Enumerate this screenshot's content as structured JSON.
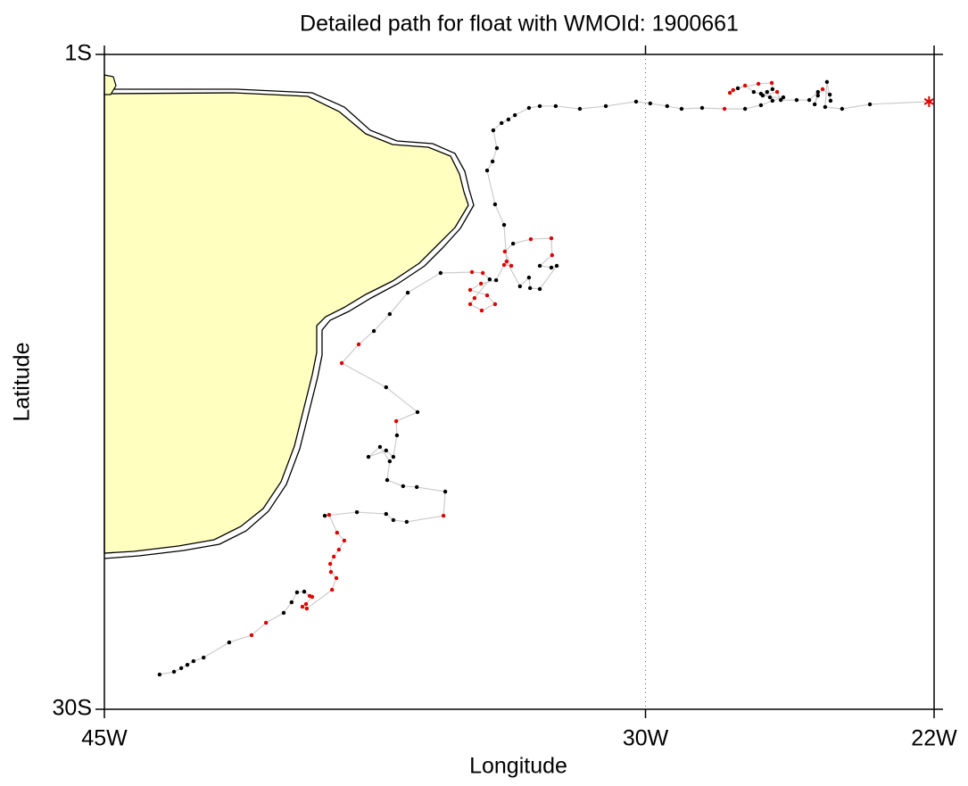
{
  "chart_data": {
    "type": "line",
    "title": "Detailed path for float with WMOId: 1900661",
    "xlabel": "Longitude",
    "ylabel": "Latitude",
    "xlim": [
      -45,
      -22
    ],
    "ylim": [
      -30,
      -1
    ],
    "xticks": [
      {
        "value": -45,
        "label": "45W"
      },
      {
        "value": -30,
        "label": "30W"
      },
      {
        "value": -22,
        "label": "22W"
      }
    ],
    "yticks": [
      {
        "value": -1,
        "label": "1S"
      },
      {
        "value": -30,
        "label": "30S"
      }
    ],
    "vlines": [
      -30
    ],
    "line_color": "#cccccc",
    "land_color": "#ffffc0",
    "last_marker": "asterisk",
    "x": [
      -43.47,
      -43.07,
      -42.87,
      -42.7,
      -42.53,
      -42.25,
      -41.54,
      -40.92,
      -40.52,
      -40.03,
      -39.81,
      -39.66,
      -39.46,
      -39.31,
      -39.24,
      -39.41,
      -39.51,
      -39.39,
      -38.69,
      -38.57,
      -38.72,
      -38.74,
      -38.64,
      -38.5,
      -38.35,
      -38.55,
      -38.77,
      -38.89,
      -38.0,
      -37.19,
      -36.99,
      -36.62,
      -35.6,
      -35.55,
      -36.34,
      -36.72,
      -37.16,
      -37.09,
      -37.36,
      -37.68,
      -37.19,
      -36.99,
      -36.89,
      -36.91,
      -36.32,
      -37.19,
      -38.42,
      -37.95,
      -37.53,
      -37.09,
      -36.59,
      -35.68,
      -34.81,
      -34.51,
      -34.32,
      -34.74,
      -34.86,
      -34.54,
      -34.17,
      -34.39,
      -34.86,
      -34.56,
      -34.14,
      -33.92,
      -33.72,
      -33.9,
      -33.67,
      -33.18,
      -32.61,
      -32.59,
      -32.93,
      -32.61,
      -32.46,
      -32.93,
      -33.2,
      -33.23,
      -33.48,
      -33.85,
      -33.92,
      -34.17,
      -34.39,
      -34.24,
      -34.12,
      -34.22,
      -33.99,
      -33.8,
      -33.62,
      -33.23,
      -32.93,
      -32.49,
      -31.82,
      -31.1,
      -30.26,
      -29.87,
      -29.4,
      -29.0,
      -28.43,
      -27.81,
      -27.24,
      -26.8,
      -26.48,
      -26.18,
      -26.55,
      -26.8,
      -27.0,
      -27.24,
      -27.57,
      -27.66,
      -27.44,
      -26.87,
      -26.5,
      -26.48,
      -26.63,
      -26.75,
      -26.35,
      -26.25,
      -25.81,
      -25.46,
      -25.22,
      -25.31,
      -25.22,
      -25.09,
      -24.89,
      -24.87,
      -24.97,
      -25.02,
      -24.55,
      -23.78,
      -22.14
    ],
    "y": [
      -28.46,
      -28.34,
      -28.18,
      -28.03,
      -27.87,
      -27.71,
      -27.04,
      -26.72,
      -26.17,
      -25.73,
      -25.26,
      -24.82,
      -24.79,
      -24.98,
      -25.02,
      -25.34,
      -25.46,
      -25.54,
      -24.71,
      -24.19,
      -23.92,
      -23.56,
      -23.24,
      -22.93,
      -22.53,
      -22.18,
      -21.39,
      -21.43,
      -21.27,
      -21.35,
      -21.62,
      -21.7,
      -21.43,
      -20.36,
      -20.16,
      -20.12,
      -19.85,
      -19.02,
      -18.38,
      -18.82,
      -18.54,
      -18.82,
      -17.87,
      -17.24,
      -16.84,
      -15.74,
      -14.67,
      -13.84,
      -13.25,
      -12.5,
      -11.55,
      -10.68,
      -10.64,
      -10.68,
      -10.96,
      -11.79,
      -12.06,
      -12.34,
      -12.06,
      -11.67,
      -11.43,
      -11.15,
      -11.0,
      -10.32,
      -10.36,
      -9.73,
      -9.38,
      -9.18,
      -9.14,
      -9.89,
      -10.36,
      -10.44,
      -10.36,
      -11.39,
      -11.35,
      -10.88,
      -11.27,
      -10.17,
      -8.55,
      -7.64,
      -6.14,
      -5.74,
      -5.15,
      -4.36,
      -4.04,
      -3.88,
      -3.69,
      -3.37,
      -3.29,
      -3.29,
      -3.41,
      -3.29,
      -3.09,
      -3.17,
      -3.29,
      -3.41,
      -3.37,
      -3.41,
      -3.41,
      -3.25,
      -3.05,
      -2.9,
      -2.9,
      -2.74,
      -2.66,
      -2.38,
      -2.58,
      -2.7,
      -2.5,
      -2.3,
      -2.26,
      -2.54,
      -2.66,
      -2.82,
      -2.66,
      -3.02,
      -3.02,
      -3.02,
      -2.66,
      -3.21,
      -2.82,
      -2.54,
      -2.78,
      -3.05,
      -2.22,
      -3.33,
      -3.41,
      -3.21,
      -3.09
    ],
    "point_colors": [
      "#000000",
      "#000000",
      "#000000",
      "#000000",
      "#000000",
      "#000000",
      "#000000",
      "#e00000",
      "#e00000",
      "#000000",
      "#000000",
      "#000000",
      "#000000",
      "#e00000",
      "#e00000",
      "#e00000",
      "#e00000",
      "#e00000",
      "#e00000",
      "#e00000",
      "#e00000",
      "#e00000",
      "#e00000",
      "#e00000",
      "#e00000",
      "#e00000",
      "#e00000",
      "#000000",
      "#000000",
      "#000000",
      "#000000",
      "#000000",
      "#e00000",
      "#000000",
      "#000000",
      "#000000",
      "#000000",
      "#000000",
      "#000000",
      "#000000",
      "#000000",
      "#000000",
      "#000000",
      "#e00000",
      "#000000",
      "#000000",
      "#e00000",
      "#e00000",
      "#000000",
      "#000000",
      "#000000",
      "#000000",
      "#e00000",
      "#e00000",
      "#000000",
      "#e00000",
      "#e00000",
      "#e00000",
      "#e00000",
      "#e00000",
      "#e00000",
      "#e00000",
      "#000000",
      "#e00000",
      "#e00000",
      "#e00000",
      "#000000",
      "#e00000",
      "#e00000",
      "#e00000",
      "#000000",
      "#000000",
      "#000000",
      "#000000",
      "#000000",
      "#000000",
      "#000000",
      "#e00000",
      "#000000",
      "#000000",
      "#000000",
      "#000000",
      "#000000",
      "#000000",
      "#000000",
      "#000000",
      "#000000",
      "#000000",
      "#000000",
      "#000000",
      "#000000",
      "#000000",
      "#000000",
      "#000000",
      "#000000",
      "#000000",
      "#000000",
      "#e00000",
      "#000000",
      "#000000",
      "#000000",
      "#000000",
      "#000000",
      "#000000",
      "#000000",
      "#e00000",
      "#e00000",
      "#e00000",
      "#000000",
      "#e00000",
      "#e00000",
      "#000000",
      "#000000",
      "#000000",
      "#e00000",
      "#000000",
      "#000000",
      "#000000",
      "#000000",
      "#000000",
      "#000000",
      "#e00000",
      "#000000",
      "#000000",
      "#000000",
      "#000000",
      "#000000",
      "#000000",
      "#e00000"
    ]
  }
}
